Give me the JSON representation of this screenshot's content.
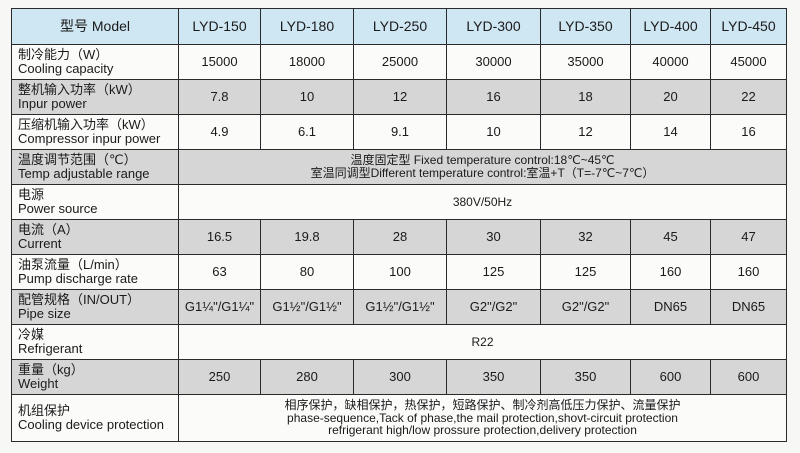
{
  "header": {
    "label": "型号 Model",
    "models": [
      "LYD-150",
      "LYD-180",
      "LYD-250",
      "LYD-300",
      "LYD-350",
      "LYD-400",
      "LYD-450"
    ]
  },
  "rows": [
    {
      "cn": "制冷能力（W）",
      "en": "Cooling capacity",
      "values": [
        "15000",
        "18000",
        "25000",
        "30000",
        "35000",
        "40000",
        "45000"
      ]
    },
    {
      "cn": "整机输入功率（kW）",
      "en": "Inpur power",
      "values": [
        "7.8",
        "10",
        "12",
        "16",
        "18",
        "20",
        "22"
      ]
    },
    {
      "cn": "压缩机输入功率（kW）",
      "en": "Compressor inpur power",
      "values": [
        "4.9",
        "6.1",
        "9.1",
        "10",
        "12",
        "14",
        "16"
      ]
    },
    {
      "cn": "温度调节范围（℃）",
      "en": "Temp adjustable range",
      "span": [
        "温度固定型 Fixed temperature control:18℃~45℃",
        "室温同调型Different temperature control:室温+T（T=-7℃~7℃）"
      ]
    },
    {
      "cn": "电源",
      "en": "Power source",
      "span": [
        "380V/50Hz"
      ]
    },
    {
      "cn": "电流（A）",
      "en": "Current",
      "values": [
        "16.5",
        "19.8",
        "28",
        "30",
        "32",
        "45",
        "47"
      ]
    },
    {
      "cn": "油泵流量（L/min）",
      "en": "Pump discharge rate",
      "values": [
        "63",
        "80",
        "100",
        "125",
        "125",
        "160",
        "160"
      ]
    },
    {
      "cn": "配管规格（IN/OUT）",
      "en": "Pipe size",
      "values": [
        "G1¼\"/G1¼\"",
        "G1½\"/G1½\"",
        "G1½\"/G1½\"",
        "G2\"/G2\"",
        "G2\"/G2\"",
        "DN65",
        "DN65"
      ]
    },
    {
      "cn": "冷媒",
      "en": "Refrigerant",
      "span": [
        "R22"
      ]
    },
    {
      "cn": "重量（kg）",
      "en": "Weight",
      "values": [
        "250",
        "280",
        "300",
        "350",
        "350",
        "600",
        "600"
      ]
    },
    {
      "cn": "机组保护",
      "en": "Cooling device protection",
      "span": [
        "相序保护，缺相保护，热保护，短路保护、制冷剂高低压力保护、流量保护",
        "phase-sequence,Tack of phase,the mail protection,shovt-circuit protection",
        "refrigerant high/low prossure protection,delivery protection"
      ]
    }
  ]
}
